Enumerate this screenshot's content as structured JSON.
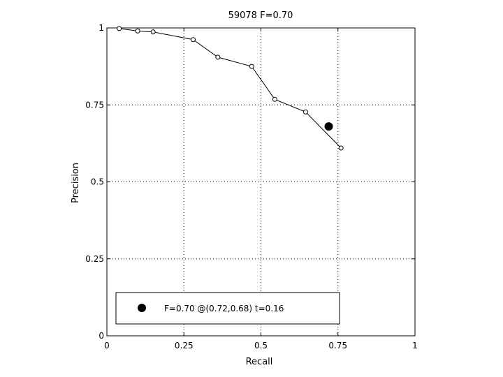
{
  "chart_data": {
    "type": "line",
    "title": "59078 F=0.70",
    "xlabel": "Recall",
    "ylabel": "Precision",
    "xlim": [
      0,
      1
    ],
    "ylim": [
      0,
      1
    ],
    "xticks": [
      0,
      0.25,
      0.5,
      0.75,
      1
    ],
    "yticks": [
      0,
      0.25,
      0.5,
      0.75,
      1
    ],
    "xtick_labels": [
      "0",
      "0.25",
      "0.5",
      "0.75",
      "1"
    ],
    "ytick_labels": [
      "0",
      "0.25",
      "0.5",
      "0.75",
      "1"
    ],
    "grid": true,
    "series": [
      {
        "x": [
          0.04,
          0.1,
          0.15,
          0.28,
          0.36,
          0.47,
          0.545,
          0.645,
          0.76
        ],
        "y": [
          0.998,
          0.99,
          0.987,
          0.962,
          0.905,
          0.875,
          0.768,
          0.727,
          0.61
        ],
        "color": "#000000",
        "marker": "open-circle"
      }
    ],
    "highlight": {
      "x": 0.72,
      "y": 0.68,
      "color": "#000000",
      "marker": "filled-circle"
    },
    "legend": {
      "position": "bottom",
      "entries": [
        {
          "label": "F=0.70 @(0.72,0.68) t=0.16",
          "marker": "filled-circle"
        }
      ]
    }
  }
}
